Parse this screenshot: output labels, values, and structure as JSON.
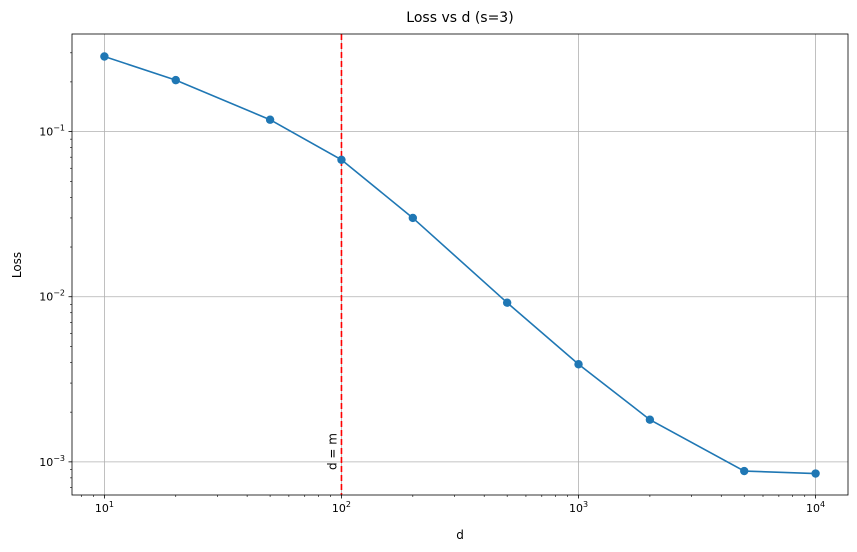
{
  "chart_data": {
    "type": "line",
    "title": "Loss vs d (s=3)",
    "xlabel": "d",
    "ylabel": "Loss",
    "xscale": "log",
    "yscale": "log",
    "xlim": [
      7.3,
      13700
    ],
    "ylim": [
      0.00063,
      0.39
    ],
    "grid": true,
    "x_ticks": [
      {
        "base": "10",
        "exp": "1",
        "value": 10
      },
      {
        "base": "10",
        "exp": "2",
        "value": 100
      },
      {
        "base": "10",
        "exp": "3",
        "value": 1000
      },
      {
        "base": "10",
        "exp": "4",
        "value": 10000
      }
    ],
    "y_ticks": [
      {
        "base": "10",
        "exp": "−3",
        "value": 0.001
      },
      {
        "base": "10",
        "exp": "−2",
        "value": 0.01
      },
      {
        "base": "10",
        "exp": "−1",
        "value": 0.1
      }
    ],
    "series": [
      {
        "color": "#1f77b4",
        "marker": "circle",
        "x": [
          10,
          20,
          50,
          100,
          200,
          500,
          1000,
          2000,
          5000,
          10000
        ],
        "y": [
          0.285,
          0.205,
          0.118,
          0.0675,
          0.03,
          0.0092,
          0.0039,
          0.0018,
          0.00088,
          0.00085
        ]
      }
    ],
    "annotations": [
      {
        "type": "vline",
        "x": 100,
        "color": "#ff0000",
        "style": "dashed",
        "label": "d = m"
      }
    ]
  }
}
